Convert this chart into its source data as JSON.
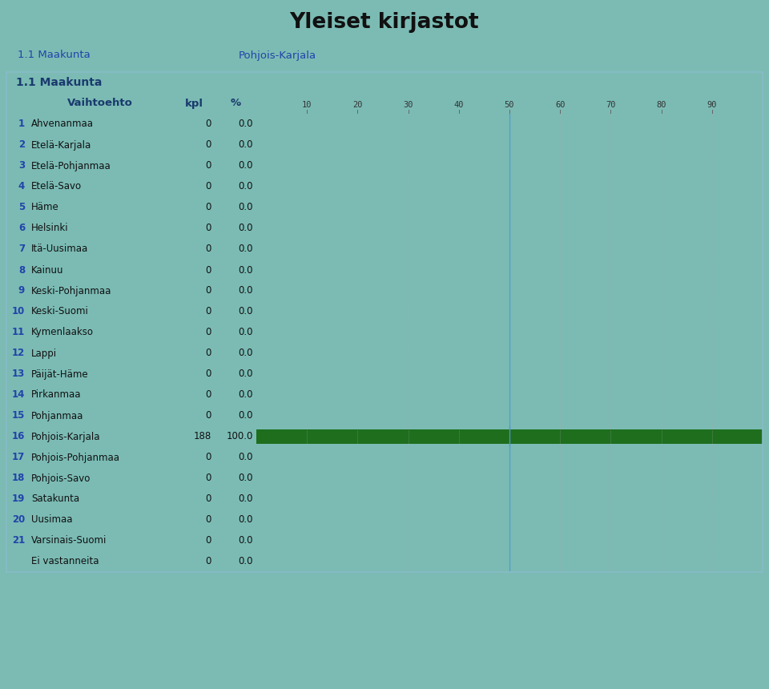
{
  "title": "Yleiset kirjastot",
  "subtitle_left": "1.1 Maakunta",
  "subtitle_right": "Pohjois-Karjala",
  "section_label": "1.1 Maakunta",
  "col_headers": [
    "Vaihtoehto",
    "kpl",
    "%"
  ],
  "rows": [
    {
      "num": "1",
      "label": "Ahvenanmaa",
      "kpl": "0",
      "pct": "0.0",
      "value": 0.0
    },
    {
      "num": "2",
      "label": "Etelä-Karjala",
      "kpl": "0",
      "pct": "0.0",
      "value": 0.0
    },
    {
      "num": "3",
      "label": "Etelä-Pohjanmaa",
      "kpl": "0",
      "pct": "0.0",
      "value": 0.0
    },
    {
      "num": "4",
      "label": "Etelä-Savo",
      "kpl": "0",
      "pct": "0.0",
      "value": 0.0
    },
    {
      "num": "5",
      "label": "Häme",
      "kpl": "0",
      "pct": "0.0",
      "value": 0.0
    },
    {
      "num": "6",
      "label": "Helsinki",
      "kpl": "0",
      "pct": "0.0",
      "value": 0.0
    },
    {
      "num": "7",
      "label": "Itä-Uusimaa",
      "kpl": "0",
      "pct": "0.0",
      "value": 0.0
    },
    {
      "num": "8",
      "label": "Kainuu",
      "kpl": "0",
      "pct": "0.0",
      "value": 0.0
    },
    {
      "num": "9",
      "label": "Keski-Pohjanmaa",
      "kpl": "0",
      "pct": "0.0",
      "value": 0.0
    },
    {
      "num": "10",
      "label": "Keski-Suomi",
      "kpl": "0",
      "pct": "0.0",
      "value": 0.0
    },
    {
      "num": "11",
      "label": "Kymenlaakso",
      "kpl": "0",
      "pct": "0.0",
      "value": 0.0
    },
    {
      "num": "12",
      "label": "Lappi",
      "kpl": "0",
      "pct": "0.0",
      "value": 0.0
    },
    {
      "num": "13",
      "label": "Päijät-Häme",
      "kpl": "0",
      "pct": "0.0",
      "value": 0.0
    },
    {
      "num": "14",
      "label": "Pirkanmaa",
      "kpl": "0",
      "pct": "0.0",
      "value": 0.0
    },
    {
      "num": "15",
      "label": "Pohjanmaa",
      "kpl": "0",
      "pct": "0.0",
      "value": 0.0
    },
    {
      "num": "16",
      "label": "Pohjois-Karjala",
      "kpl": "188",
      "pct": "100.0",
      "value": 100.0
    },
    {
      "num": "17",
      "label": "Pohjois-Pohjanmaa",
      "kpl": "0",
      "pct": "0.0",
      "value": 0.0
    },
    {
      "num": "18",
      "label": "Pohjois-Savo",
      "kpl": "0",
      "pct": "0.0",
      "value": 0.0
    },
    {
      "num": "19",
      "label": "Satakunta",
      "kpl": "0",
      "pct": "0.0",
      "value": 0.0
    },
    {
      "num": "20",
      "label": "Uusimaa",
      "kpl": "0",
      "pct": "0.0",
      "value": 0.0
    },
    {
      "num": "21",
      "label": "Varsinais-Suomi",
      "kpl": "0",
      "pct": "0.0",
      "value": 0.0
    },
    {
      "num": "",
      "label": "Ei vastanneita",
      "kpl": "0",
      "pct": "0.0",
      "value": 0.0
    }
  ],
  "header_bg": "#62aaa2",
  "subheader_bg": "#7bbbb4",
  "outer_bg": "#7bbbb4",
  "section_header_bg": "#a8d4ce",
  "col_header_bg": "#b8deda",
  "row_bg_white": "#f0f8f8",
  "row_bg_teal": "#c8e8e4",
  "chart_bg_white": "#eaf4f4",
  "chart_bg_teal": "#d0ecea",
  "bar_color": "#1e6e1e",
  "grid_line_color": "#aaaaaa",
  "grid_line_50_color": "#5599cc",
  "border_color": "#88bcc8",
  "num_color": "#2244aa",
  "label_color": "#111111",
  "header_text_color": "#1a3a6e",
  "title_color": "#111111",
  "chart_xticks": [
    10,
    20,
    30,
    40,
    50,
    60,
    70,
    80,
    90
  ]
}
